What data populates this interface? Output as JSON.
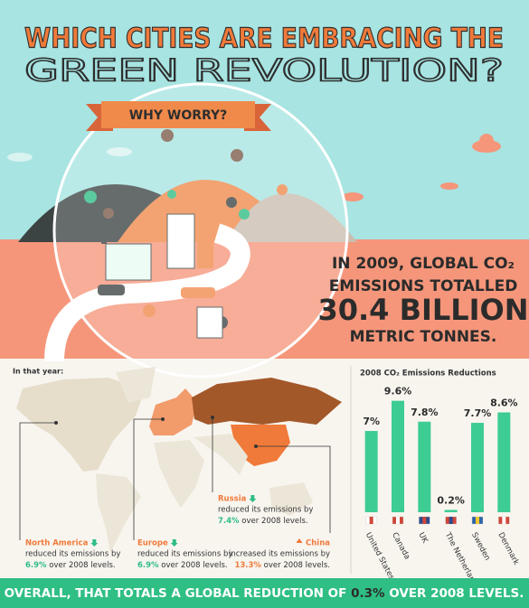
{
  "header": {
    "title_line1": "WHICH CITIES ARE EMBRACING THE",
    "title_line2": "GREEN REVOLUTION?",
    "banner": "WHY WORRY?"
  },
  "headline": {
    "line1": "IN 2009, GLOBAL CO₂",
    "line2": "EMISSIONS TOTALLED",
    "big": "30.4 BILLION",
    "line3": "METRIC TONNES."
  },
  "map": {
    "title": "In that year:",
    "regions": [
      {
        "name": "North America",
        "line1": "reduced its emissions by",
        "amount": "6.9%",
        "line2": "over 2008 levels."
      },
      {
        "name": "Europe",
        "line1": "reduced its emissions by",
        "amount": "6.9%",
        "line2": "over 2008 levels."
      },
      {
        "name": "Russia",
        "line1": "reduced its emissions by",
        "amount": "7.4%",
        "line2": "over 2008 levels."
      },
      {
        "name": "China",
        "line1": "increased its emissions by",
        "amount": "13.3%",
        "line2": "over 2008 levels."
      }
    ]
  },
  "chart_data": {
    "type": "bar",
    "title": "2008 CO₂ Emissions Reductions",
    "categories": [
      "United States",
      "Canada",
      "UK",
      "The Netherlands",
      "Sweden",
      "Denmark"
    ],
    "values": [
      7,
      9.6,
      7.8,
      0.2,
      7.7,
      8.6
    ],
    "value_labels": [
      "7%",
      "9.6%",
      "7.8%",
      "0.2%",
      "7.7%",
      "8.6%"
    ],
    "color": "#3dcc92"
  },
  "footer": {
    "text_before": "OVERALL, THAT TOTALS A GLOBAL REDUCTION OF",
    "highlight": "0.3%",
    "text_after": "OVER 2008 LEVELS."
  }
}
